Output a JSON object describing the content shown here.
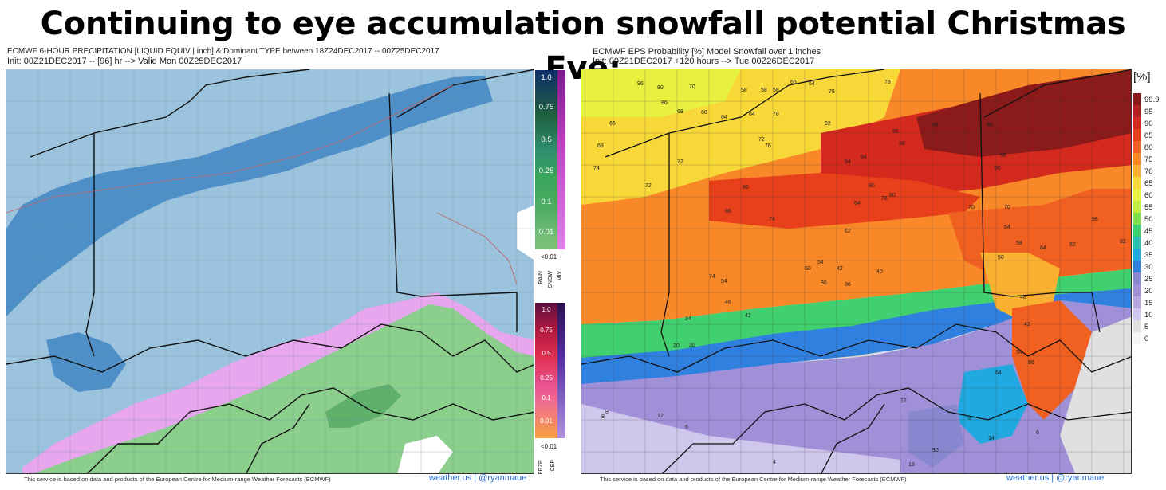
{
  "headline": "Continuing to eye accumulation snowfall potential Christmas Eve:",
  "left_panel": {
    "title_line1": "ECMWF 6-HOUR PRECIPITATION [LIQUID EQUIV | inch] & Dominant TYPE between 18Z24DEC2017 -- 00Z25DEC2017",
    "title_line2": "Init: 00Z21DEC2017 -- [96] hr --> Valid Mon 00Z25DEC2017",
    "footer": "This service is based on data and products of the European Centre for Medium-range Weather Forecasts (ECMWF)",
    "brand": "weather.us | @ryanmaue",
    "snow_scale": {
      "labels": [
        "1.0",
        "0.75",
        "0.5",
        "0.25",
        "0.1",
        "0.01"
      ],
      "colors": [
        "#0f2f6b",
        "#1f5f3f",
        "#2f8f6f",
        "#3aa55a",
        "#4fae66",
        "#78c07a"
      ]
    },
    "lt_label": "<0.01",
    "type_labels": [
      "RAIN",
      "SNOW",
      "MIX"
    ],
    "ice_scale": {
      "labels": [
        "1.0",
        "0.75",
        "0.5",
        "0.25",
        "0.1",
        "0.01"
      ],
      "colors": [
        "#5a1040",
        "#b01840",
        "#e03050",
        "#e85090",
        "#f07090",
        "#f5a040"
      ]
    },
    "lt_label2": "<0.01",
    "type_labels2": [
      "FRZR",
      "ICEP"
    ],
    "colors": {
      "rain": "#9cc3de",
      "snow": "#4e8fc8",
      "mix": "#e8a6ee",
      "green": "#8ccf8c",
      "dkgreen": "#5fb06a"
    }
  },
  "right_panel": {
    "title_line1": "ECMWF EPS Probability [%] Model Snowfall over 1 inches",
    "title_line2": "Init: 00Z21DEC2017 +120 hours --> Tue 00Z26DEC2017",
    "footer": "This service is based on data and products of the European Centre for Medium-range Weather Forecasts (ECMWF)",
    "brand": "weather.us | @ryanmaue",
    "legend_title": "[%]",
    "legend_labels": [
      "99.9",
      "95",
      "90",
      "85",
      "80",
      "75",
      "70",
      "65",
      "60",
      "55",
      "50",
      "45",
      "40",
      "35",
      "30",
      "25",
      "20",
      "15",
      "10",
      "5",
      "0"
    ],
    "legend_colors": [
      "#8b1a1a",
      "#b22222",
      "#d42a1e",
      "#e8401a",
      "#f06020",
      "#f88828",
      "#fab030",
      "#f8d838",
      "#e8f040",
      "#c0ec40",
      "#80e050",
      "#40d070",
      "#30c0b0",
      "#20a8e0",
      "#3080e0",
      "#8888d0",
      "#a090d8",
      "#b8a8e0",
      "#d0c8ec",
      "#e0e0e0",
      "#f4f4f4"
    ],
    "map_values": [
      "96",
      "80",
      "70",
      "58",
      "58",
      "58",
      "66",
      "64",
      "78",
      "78",
      "86",
      "68",
      "68",
      "64",
      "64",
      "78",
      "92",
      "98",
      "66",
      "72",
      "76",
      "96",
      "96",
      "68",
      "72",
      "94",
      "94",
      "98",
      "74",
      "86",
      "86",
      "98",
      "72",
      "80",
      "80",
      "84",
      "76",
      "70",
      "70",
      "86",
      "62",
      "74",
      "86",
      "82",
      "58",
      "64",
      "84",
      "82",
      "50",
      "54",
      "50",
      "42",
      "40",
      "48",
      "74",
      "54",
      "36",
      "36",
      "46",
      "34",
      "42",
      "42",
      "54",
      "20",
      "30",
      "86",
      "64",
      "12",
      "14",
      "30",
      "18",
      "6",
      "12",
      "8",
      "8",
      "6",
      "4",
      "6"
    ]
  }
}
